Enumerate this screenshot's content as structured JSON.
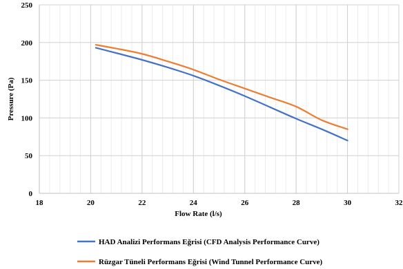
{
  "chart_data": {
    "type": "line",
    "title": "",
    "xlabel": "Flow Rate (l/s)",
    "ylabel": "Pressure (Pa)",
    "xlim": [
      18,
      32
    ],
    "ylim": [
      0,
      250
    ],
    "x_ticks": [
      18,
      20,
      22,
      24,
      26,
      28,
      30,
      32
    ],
    "y_ticks": [
      0,
      50,
      100,
      150,
      200,
      250
    ],
    "grid": {
      "major": true,
      "minor_vertical": true
    },
    "legend_position": "bottom",
    "series": [
      {
        "name": "HAD Analizi Performans Eğrisi (CFD Analysis Performance Curve)",
        "color": "#4472C4",
        "points": [
          [
            20.2,
            193
          ],
          [
            21,
            186
          ],
          [
            22,
            177
          ],
          [
            23,
            167
          ],
          [
            24,
            156
          ],
          [
            25,
            143
          ],
          [
            26,
            129
          ],
          [
            27,
            114
          ],
          [
            28,
            99
          ],
          [
            29,
            85
          ],
          [
            30,
            70
          ]
        ]
      },
      {
        "name": "Rüzgar Tüneli Performans Eğrisi (Wind Tunnel Performance Curve)",
        "color": "#ED7D31",
        "points": [
          [
            20.2,
            197
          ],
          [
            21,
            192
          ],
          [
            22,
            185
          ],
          [
            23,
            175
          ],
          [
            24,
            164
          ],
          [
            25,
            151
          ],
          [
            26,
            139
          ],
          [
            27,
            127
          ],
          [
            28,
            115
          ],
          [
            29,
            97
          ],
          [
            30,
            85
          ]
        ]
      }
    ]
  }
}
